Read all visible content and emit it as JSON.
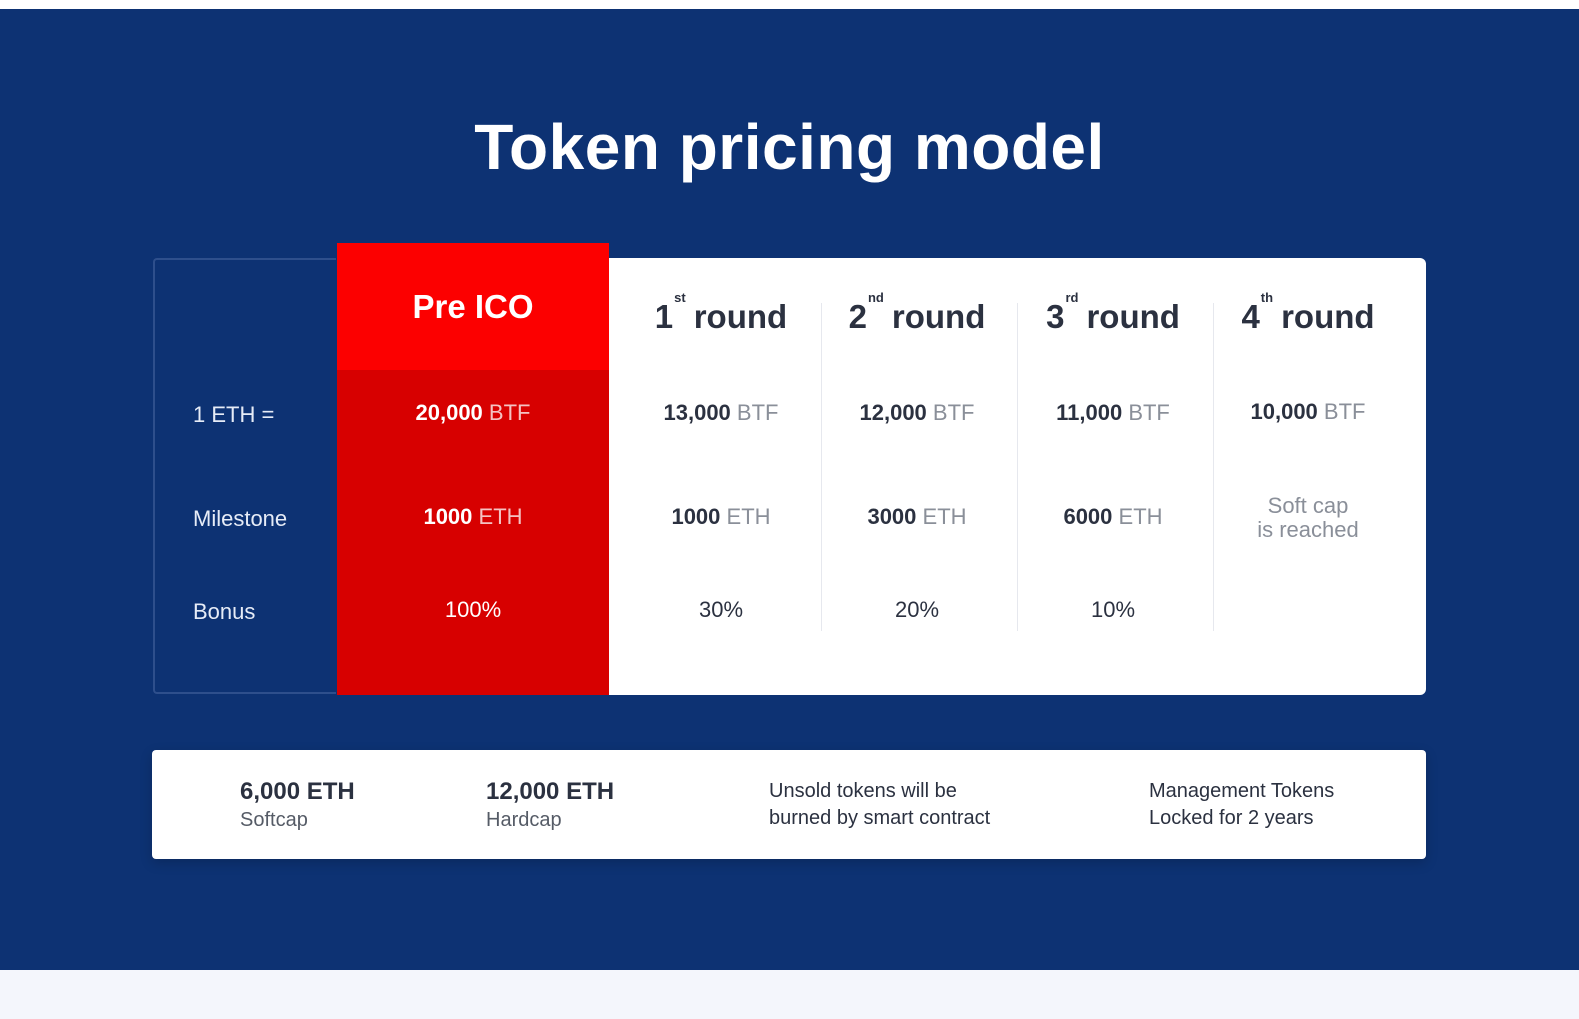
{
  "title": "Token pricing model",
  "row_labels": {
    "rate": "1 ETH =",
    "milestone": "Milestone",
    "bonus": "Bonus"
  },
  "pre_ico": {
    "header": "Pre ICO",
    "rate_value": "20,000",
    "rate_unit": "BTF",
    "milestone_value": "1000",
    "milestone_unit": "ETH",
    "bonus": "100%"
  },
  "rounds": [
    {
      "num": "1",
      "suffix": "st",
      "label": "round",
      "rate_value": "13,000",
      "rate_unit": "BTF",
      "milestone_value": "1000",
      "milestone_unit": "ETH",
      "bonus": "30%"
    },
    {
      "num": "2",
      "suffix": "nd",
      "label": "round",
      "rate_value": "12,000",
      "rate_unit": "BTF",
      "milestone_value": "3000",
      "milestone_unit": "ETH",
      "bonus": "20%"
    },
    {
      "num": "3",
      "suffix": "rd",
      "label": "round",
      "rate_value": "11,000",
      "rate_unit": "BTF",
      "milestone_value": "6000",
      "milestone_unit": "ETH",
      "bonus": "10%"
    },
    {
      "num": "4",
      "suffix": "th",
      "label": "round",
      "rate_value": "10,000",
      "rate_unit": "BTF",
      "milestone_line1": "Soft cap",
      "milestone_line2": "is reached",
      "bonus": ""
    }
  ],
  "info": {
    "softcap_value": "6,000 ETH",
    "softcap_label": "Softcap",
    "hardcap_value": "12,000 ETH",
    "hardcap_label": "Hardcap",
    "unsold_line1": "Unsold tokens will be",
    "unsold_line2": "burned by smart contract",
    "mgmt_line1": "Management Tokens",
    "mgmt_line2": "Locked for 2 years"
  },
  "colors": {
    "background": "#0d3273",
    "pre_ico_header": "#fc0000",
    "pre_ico_body": "#d70000",
    "panel": "#ffffff"
  }
}
